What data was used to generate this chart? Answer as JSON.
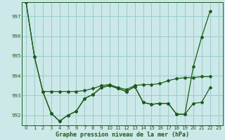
{
  "title": "Graphe pression niveau de la mer (hPa)",
  "background_color": "#cce8e8",
  "grid_color": "#99cccc",
  "line_color": "#1a5c1a",
  "xlim": [
    -0.5,
    23.5
  ],
  "ylim": [
    991.5,
    997.7
  ],
  "yticks": [
    992,
    993,
    994,
    995,
    996,
    997
  ],
  "xticks": [
    0,
    1,
    2,
    3,
    4,
    5,
    6,
    7,
    8,
    9,
    10,
    11,
    12,
    13,
    14,
    15,
    16,
    17,
    18,
    19,
    20,
    21,
    22,
    23
  ],
  "line1_x": [
    0,
    1,
    2,
    3,
    4,
    5,
    6,
    7,
    8,
    9,
    10,
    11,
    12,
    13,
    14,
    15,
    16,
    17,
    18,
    19,
    20,
    21,
    22
  ],
  "line1_y": [
    997.7,
    994.95,
    993.2,
    993.2,
    993.2,
    993.2,
    993.2,
    993.25,
    993.35,
    993.5,
    993.55,
    993.4,
    993.3,
    993.5,
    993.55,
    993.55,
    993.6,
    993.75,
    993.85,
    993.9,
    993.9,
    993.95,
    993.95
  ],
  "line2_x": [
    2,
    3,
    4,
    5,
    6,
    7,
    8,
    9,
    10,
    11,
    12,
    13,
    14,
    15,
    16,
    17,
    18,
    19,
    20,
    21,
    22
  ],
  "line2_y": [
    993.2,
    992.1,
    991.7,
    992.0,
    992.2,
    992.85,
    993.05,
    993.4,
    993.5,
    993.35,
    993.2,
    993.45,
    992.65,
    992.55,
    992.6,
    992.6,
    992.05,
    992.05,
    992.6,
    992.65,
    993.4
  ],
  "line3_x": [
    0,
    1,
    2,
    3,
    4,
    5,
    6,
    7,
    8,
    9,
    10,
    11,
    12,
    13,
    14,
    15,
    16,
    17,
    18,
    19,
    20,
    21,
    22
  ],
  "line3_y": [
    997.7,
    994.95,
    993.2,
    992.1,
    991.7,
    992.0,
    992.2,
    992.85,
    993.05,
    993.4,
    993.5,
    993.35,
    993.2,
    993.45,
    992.65,
    992.55,
    992.6,
    992.6,
    992.05,
    992.05,
    994.45,
    995.95,
    997.25
  ]
}
